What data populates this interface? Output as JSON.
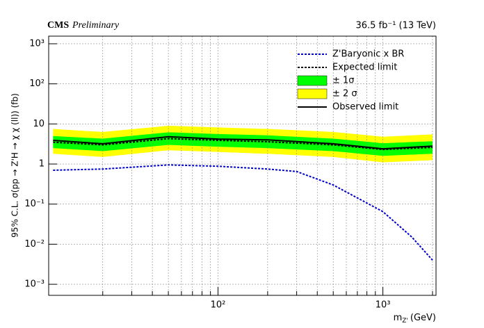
{
  "chart_data": {
    "type": "limit",
    "title_bold": "CMS",
    "title_italic": "Preliminary",
    "lumi": "36.5 fb⁻¹ (13 TeV)",
    "ylabel": "95% C.L. σ(pp → Z'H → χ χ (ll)) (fb)",
    "xlabel": "m",
    "xlabel_sub": "Z'",
    "xlabel_unit": "(GeV)",
    "xscale": "log",
    "yscale": "log",
    "xlim": [
      9.4,
      2100
    ],
    "ylim": [
      0.00053,
      1550
    ],
    "xticks": [
      {
        "value": 100,
        "label": "10²"
      },
      {
        "value": 1000,
        "label": "10³"
      }
    ],
    "xminorticks": [
      20,
      30,
      40,
      50,
      60,
      70,
      80,
      90,
      200,
      300,
      400,
      500,
      600,
      700,
      800,
      900,
      2000
    ],
    "yticks": [
      {
        "value": 0.001,
        "label": "10⁻³"
      },
      {
        "value": 0.01,
        "label": "10⁻²"
      },
      {
        "value": 0.1,
        "label": "10⁻¹"
      },
      1,
      10,
      {
        "value": 100,
        "label": "10²"
      },
      {
        "value": 1000,
        "label": "10³"
      }
    ],
    "grid": true,
    "x": [
      10,
      20,
      50,
      100,
      200,
      500,
      1000,
      2000
    ],
    "bands": [
      {
        "name": "± 2 σ",
        "color": "#ffff00",
        "lower": [
          1.8,
          1.5,
          2.2,
          2.0,
          1.8,
          1.5,
          1.1,
          1.25
        ],
        "upper": [
          7.5,
          6.3,
          9.0,
          8.2,
          7.5,
          6.3,
          4.8,
          5.5
        ]
      },
      {
        "name": "± 1σ",
        "color": "#00ff00",
        "lower": [
          2.5,
          2.1,
          3.0,
          2.7,
          2.5,
          2.1,
          1.6,
          1.8
        ],
        "upper": [
          5.0,
          4.3,
          6.2,
          5.6,
          5.2,
          4.3,
          3.3,
          3.7
        ]
      }
    ],
    "series": [
      {
        "name": "Expected limit",
        "color": "#000000",
        "style": "dotted",
        "values": [
          3.5,
          3.0,
          4.3,
          3.9,
          3.6,
          3.0,
          2.3,
          2.6
        ]
      },
      {
        "name": "Observed limit",
        "color": "#000000",
        "style": "solid",
        "values": [
          3.9,
          3.2,
          4.8,
          4.2,
          4.0,
          3.2,
          2.4,
          2.8
        ]
      }
    ],
    "theory": {
      "name": "Z'Baryonic x BR",
      "color": "#0000cc",
      "style": "dotted",
      "x": [
        10,
        20,
        50,
        100,
        200,
        300,
        500,
        1000,
        1500,
        2000
      ],
      "values": [
        0.7,
        0.75,
        0.95,
        0.88,
        0.75,
        0.65,
        0.3,
        0.065,
        0.015,
        0.004
      ]
    }
  }
}
